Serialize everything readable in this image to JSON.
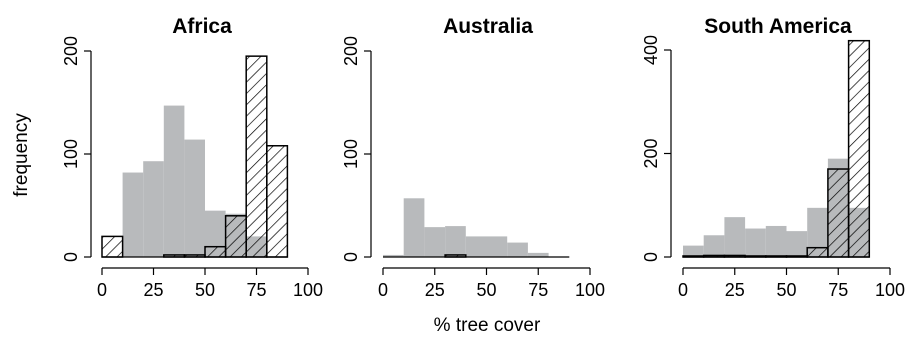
{
  "chart_data": [
    {
      "type": "histogram",
      "title": "Africa",
      "ylabel": "frequency",
      "xlabel": "",
      "bin_edges": [
        0,
        10,
        20,
        30,
        40,
        50,
        60,
        70,
        80,
        90
      ],
      "xlim": [
        0,
        100
      ],
      "ylim": [
        0,
        200
      ],
      "x_ticks": [
        0,
        25,
        50,
        75,
        100
      ],
      "y_ticks": [
        0,
        100,
        200
      ],
      "series": [
        {
          "style": "gray fill",
          "color": "#b8babc",
          "values": [
            0,
            82,
            93,
            147,
            114,
            45,
            42,
            20,
            0
          ]
        },
        {
          "style": "hatched outline",
          "values": [
            20,
            0,
            0,
            2,
            2,
            10,
            40,
            195,
            108
          ]
        }
      ]
    },
    {
      "type": "histogram",
      "title": "Australia",
      "xlabel": "% tree cover",
      "bin_edges": [
        0,
        10,
        20,
        30,
        40,
        50,
        60,
        70,
        80,
        90
      ],
      "xlim": [
        0,
        100
      ],
      "ylim": [
        0,
        200
      ],
      "x_ticks": [
        0,
        25,
        50,
        75,
        100
      ],
      "y_ticks": [
        0,
        100,
        200
      ],
      "series": [
        {
          "style": "gray fill",
          "color": "#b8babc",
          "values": [
            2,
            57,
            29,
            30,
            20,
            20,
            14,
            4,
            0
          ]
        },
        {
          "style": "hatched outline",
          "values": [
            0,
            0,
            0,
            2,
            0,
            0,
            0,
            0,
            0
          ]
        }
      ]
    },
    {
      "type": "histogram",
      "title": "South America",
      "xlabel": "",
      "bin_edges": [
        0,
        10,
        20,
        30,
        40,
        50,
        60,
        70,
        80,
        90
      ],
      "xlim": [
        0,
        100
      ],
      "ylim": [
        0,
        400
      ],
      "x_ticks": [
        0,
        25,
        50,
        75,
        100
      ],
      "y_ticks": [
        0,
        200,
        400
      ],
      "series": [
        {
          "style": "gray fill",
          "color": "#b8babc",
          "values": [
            22,
            42,
            77,
            55,
            60,
            50,
            95,
            190,
            95
          ]
        },
        {
          "style": "hatched outline",
          "values": [
            2,
            3,
            3,
            2,
            2,
            2,
            18,
            170,
            418
          ]
        }
      ]
    }
  ]
}
